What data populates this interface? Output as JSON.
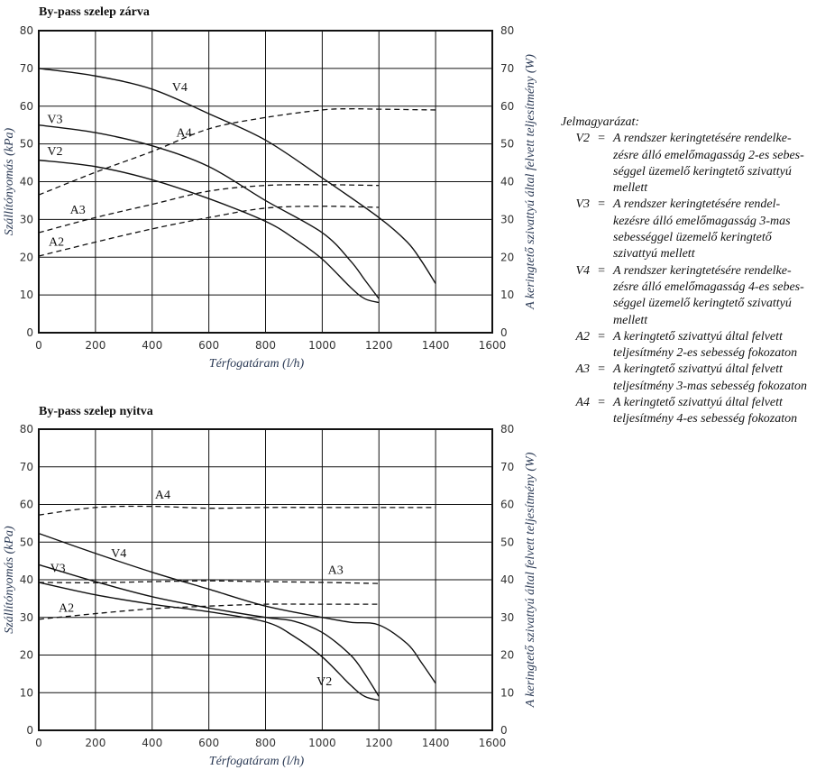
{
  "chart_data": [
    {
      "type": "line",
      "title": "By-pass szelep zárva",
      "xlabel": "Térfogatáram (l/h)",
      "ylabel": "Szállítónyomás (kPa)",
      "y2label": "A keringtető szivattyú által felvett teljesítmény (W)",
      "xlim": [
        0,
        1600
      ],
      "ylim": [
        0,
        80
      ],
      "y2lim": [
        0,
        80
      ],
      "xticks": [
        0,
        200,
        400,
        600,
        800,
        1000,
        1200,
        1400,
        1600
      ],
      "yticks": [
        0,
        10,
        20,
        30,
        40,
        50,
        60,
        70,
        80
      ],
      "grid": true,
      "series": [
        {
          "name": "V4",
          "style": "solid",
          "label_at": [
            470,
            64
          ],
          "x": [
            0,
            200,
            400,
            600,
            800,
            1000,
            1200,
            1300,
            1350,
            1400
          ],
          "y": [
            70,
            68,
            64.5,
            58,
            51,
            41,
            30.5,
            24,
            19,
            13
          ]
        },
        {
          "name": "V3",
          "style": "solid",
          "label_at": [
            30,
            55.5
          ],
          "x": [
            0,
            200,
            400,
            600,
            800,
            1000,
            1100,
            1150,
            1200
          ],
          "y": [
            55,
            53,
            49.5,
            44,
            35,
            26.5,
            19,
            14,
            9
          ]
        },
        {
          "name": "V2",
          "style": "solid",
          "label_at": [
            30,
            47
          ],
          "x": [
            0,
            200,
            400,
            600,
            800,
            900,
            1000,
            1100,
            1150,
            1200
          ],
          "y": [
            45.7,
            44,
            40.5,
            35.5,
            29.5,
            25,
            19.5,
            12,
            9,
            8
          ]
        },
        {
          "name": "A4",
          "style": "dashed",
          "label_at": [
            485,
            52
          ],
          "x": [
            0,
            200,
            400,
            600,
            800,
            1000,
            1100,
            1200,
            1400
          ],
          "y": [
            36.5,
            42.5,
            48,
            54,
            57,
            59,
            59.3,
            59.2,
            59
          ]
        },
        {
          "name": "A3",
          "style": "dashed",
          "label_at": [
            110,
            31.5
          ],
          "x": [
            0,
            200,
            400,
            600,
            800,
            1000,
            1200
          ],
          "y": [
            26.5,
            30.5,
            34,
            37.5,
            39,
            39.2,
            39
          ]
        },
        {
          "name": "A2",
          "style": "dashed",
          "label_at": [
            35,
            23
          ],
          "x": [
            0,
            200,
            400,
            600,
            800,
            1000,
            1200
          ],
          "y": [
            20.3,
            24,
            27.5,
            30.5,
            33,
            33.5,
            33.2
          ]
        }
      ]
    },
    {
      "type": "line",
      "title": "By-pass szelep nyitva",
      "xlabel": "Térfogatáram (l/h)",
      "ylabel": "Szállítónyomás (kPa)",
      "y2label": "A keringtető szivattyú által felvett teljesítmény (W)",
      "xlim": [
        0,
        1600
      ],
      "ylim": [
        0,
        80
      ],
      "y2lim": [
        0,
        80
      ],
      "xticks": [
        0,
        200,
        400,
        600,
        800,
        1000,
        1200,
        1400,
        1600
      ],
      "yticks": [
        0,
        10,
        20,
        30,
        40,
        50,
        60,
        70,
        80
      ],
      "grid": true,
      "series": [
        {
          "name": "V4",
          "style": "solid",
          "label_at": [
            255,
            46
          ],
          "x": [
            0,
            200,
            400,
            600,
            800,
            1000,
            1100,
            1200,
            1300,
            1350,
            1400
          ],
          "y": [
            52.3,
            47,
            42,
            37.5,
            33,
            30,
            28.7,
            28,
            23,
            18,
            12.5
          ]
        },
        {
          "name": "V3",
          "style": "solid",
          "label_at": [
            40,
            42
          ],
          "x": [
            0,
            200,
            400,
            600,
            800,
            900,
            1000,
            1100,
            1150,
            1200
          ],
          "y": [
            44,
            39.5,
            35.5,
            32.5,
            30,
            29,
            26,
            20,
            15,
            9
          ]
        },
        {
          "name": "V2",
          "style": "solid",
          "label_at": [
            980,
            12
          ],
          "x": [
            0,
            200,
            400,
            600,
            800,
            900,
            1000,
            1100,
            1150,
            1200
          ],
          "y": [
            39.3,
            36,
            33.5,
            31.5,
            28.8,
            25,
            19.5,
            12,
            9,
            8
          ]
        },
        {
          "name": "A4",
          "style": "dashed",
          "label_at": [
            410,
            61.5
          ],
          "x": [
            0,
            200,
            400,
            600,
            800,
            1000,
            1200,
            1400
          ],
          "y": [
            57.2,
            59.2,
            59.5,
            59,
            59.2,
            59.2,
            59.2,
            59.2
          ]
        },
        {
          "name": "A3",
          "style": "dashed",
          "label_at": [
            1020,
            41.5
          ],
          "x": [
            0,
            200,
            400,
            600,
            800,
            1000,
            1200
          ],
          "y": [
            39.3,
            39.2,
            39.5,
            39.7,
            39.5,
            39.3,
            39
          ]
        },
        {
          "name": "A2",
          "style": "dashed",
          "label_at": [
            70,
            31.5
          ],
          "x": [
            0,
            200,
            400,
            600,
            800,
            1000,
            1200
          ],
          "y": [
            29.5,
            31,
            32.3,
            33,
            33.5,
            33.5,
            33.5
          ]
        }
      ]
    }
  ],
  "legend": {
    "title": "Jelmagyarázat:",
    "items": [
      {
        "code": "V2",
        "eq": "=",
        "lines": [
          "A rendszer keringtetésére rendelke-",
          "zésre álló emelőmagasság 2-es sebes-",
          "séggel üzemelő keringtető szivattyú",
          "mellett"
        ]
      },
      {
        "code": "V3",
        "eq": "=",
        "lines": [
          "A rendszer keringtetésére rendel-",
          "kezésre álló emelőmagasság 3-mas",
          "sebességgel üzemelő keringtető",
          "szivattyú mellett"
        ]
      },
      {
        "code": "V4",
        "eq": "=",
        "lines": [
          "A rendszer keringtetésére rendelke-",
          "zésre álló emelőmagasság 4-es sebes-",
          "séggel üzemelő keringtető szivattyú",
          "mellett"
        ]
      },
      {
        "code": "A2",
        "eq": "=",
        "lines": [
          "A keringtető szivattyú által felvett",
          "teljesítmény 2-es sebesség fokozaton"
        ]
      },
      {
        "code": "A3",
        "eq": "=",
        "lines": [
          "A keringtető szivattyú által felvett",
          "teljesítmény 3-mas sebesség fokozaton"
        ]
      },
      {
        "code": "A4",
        "eq": "=",
        "lines": [
          "A keringtető szivattyú által felvett",
          "teljesítmény 4-es sebesség fokozaton"
        ]
      }
    ]
  }
}
